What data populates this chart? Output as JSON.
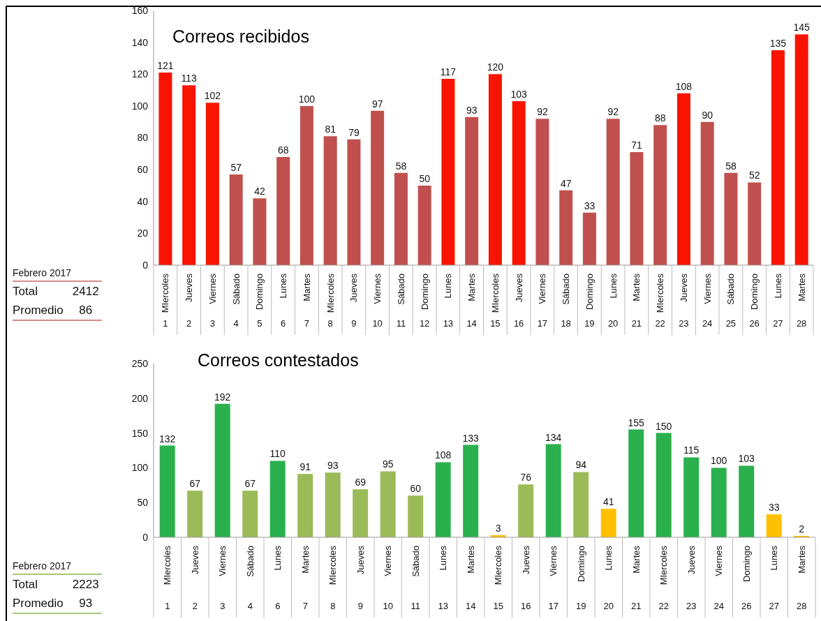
{
  "chart_data": [
    {
      "type": "bar",
      "title": "Correos recibidos",
      "categories": [
        "MIercoles\n1",
        "Jueves\n2",
        "Viernes\n3",
        "Sábado\n4",
        "Domingo\n5",
        "Lunes\n6",
        "Martes\n7",
        "MIercoles\n8",
        "Jueves\n9",
        "Viernes\n10",
        "Sábado\n11",
        "Domingo\n12",
        "Lunes\n13",
        "Martes\n14",
        "MIercoles\n15",
        "Jueves\n16",
        "Viernes\n17",
        "Sábado\n18",
        "Domingo\n19",
        "Lunes\n20",
        "Martes\n21",
        "MIercoles\n22",
        "Jueves\n23",
        "Viernes\n24",
        "Sábado\n25",
        "Domingo\n26",
        "Lunes\n27",
        "Martes\n28"
      ],
      "values": [
        121,
        113,
        102,
        57,
        42,
        68,
        100,
        81,
        79,
        97,
        58,
        50,
        117,
        93,
        120,
        103,
        92,
        47,
        33,
        92,
        71,
        88,
        108,
        90,
        58,
        52,
        135,
        145
      ],
      "colors": [
        "#f81400",
        "#f81400",
        "#f81400",
        "#c0504d",
        "#c0504d",
        "#c0504d",
        "#c0504d",
        "#c0504d",
        "#c0504d",
        "#c0504d",
        "#c0504d",
        "#c0504d",
        "#f81400",
        "#c0504d",
        "#f81400",
        "#f81400",
        "#c0504d",
        "#c0504d",
        "#c0504d",
        "#c0504d",
        "#c0504d",
        "#c0504d",
        "#f81400",
        "#c0504d",
        "#c0504d",
        "#c0504d",
        "#f81400",
        "#f81400"
      ],
      "ylim": [
        0,
        160
      ],
      "yticks": [
        0,
        20,
        40,
        60,
        80,
        100,
        120,
        140,
        160
      ],
      "data_labels": true
    },
    {
      "type": "other",
      "title": "Febrero 2017",
      "annotations": [
        "Total",
        "2412",
        "Promedio",
        "86"
      ],
      "color": "#d98a8a"
    },
    {
      "type": "bar",
      "title": "Correos contestados",
      "categories": [
        "MIercoles\n1",
        "Jueves\n2",
        "Viernes\n3",
        "Sábado\n4",
        "Lunes\n6",
        "Martes\n7",
        "MIercoles\n8",
        "Jueves\n9",
        "Viernes\n10",
        "Sábado\n11",
        "Lunes\n13",
        "Martes\n14",
        "MIercoles\n15",
        "Jueves\n16",
        "Viernes\n17",
        "Domingo\n19",
        "Lunes\n20",
        "Martes\n21",
        "MIercoles\n22",
        "Jueves\n23",
        "Viernes\n24",
        "Domingo\n26",
        "Lunes\n27",
        "Martes\n28"
      ],
      "values": [
        132,
        67,
        192,
        67,
        110,
        91,
        93,
        69,
        95,
        60,
        108,
        133,
        3,
        76,
        134,
        94,
        41,
        155,
        150,
        115,
        100,
        103,
        33,
        2
      ],
      "colors": [
        "#2ab04d",
        "#9bbb59",
        "#2ab04d",
        "#9bbb59",
        "#2ab04d",
        "#9bbb59",
        "#9bbb59",
        "#9bbb59",
        "#9bbb59",
        "#9bbb59",
        "#2ab04d",
        "#2ab04d",
        "#ffc000",
        "#9bbb59",
        "#2ab04d",
        "#9bbb59",
        "#ffc000",
        "#2ab04d",
        "#2ab04d",
        "#2ab04d",
        "#2ab04d",
        "#2ab04d",
        "#ffc000",
        "#ffc000"
      ],
      "ylim": [
        0,
        250
      ],
      "yticks": [
        0,
        50,
        100,
        150,
        200,
        250
      ],
      "data_labels": true
    },
    {
      "type": "other",
      "title": "Febrero 2017",
      "annotations": [
        "Total",
        "2223",
        "Promedio",
        "93"
      ],
      "color": "#a9c97a"
    }
  ]
}
